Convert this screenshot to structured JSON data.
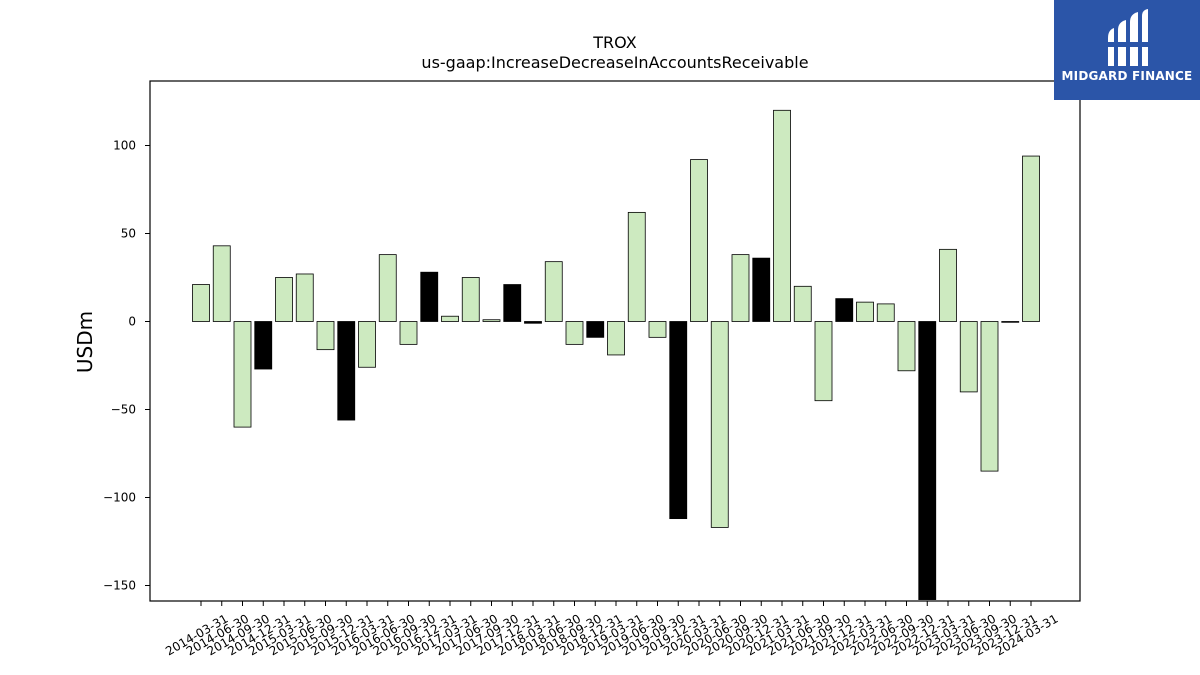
{
  "chart_data": {
    "type": "bar",
    "title": "TROX",
    "subtitle": "us-gaap:IncreaseDecreaseInAccountsReceivable",
    "ylabel": "USDm",
    "xlabel": "",
    "ylim": [
      -158,
      136
    ],
    "yticks": [
      -150,
      -100,
      -50,
      0,
      50,
      100
    ],
    "categories": [
      "2014-03-31",
      "2014-06-30",
      "2014-09-30",
      "2014-12-31",
      "2015-03-31",
      "2015-06-30",
      "2015-09-30",
      "2015-12-31",
      "2016-03-31",
      "2016-06-30",
      "2016-09-30",
      "2016-12-31",
      "2017-03-31",
      "2017-06-30",
      "2017-09-30",
      "2017-12-31",
      "2018-03-31",
      "2018-06-30",
      "2018-09-30",
      "2018-12-31",
      "2019-03-31",
      "2019-06-30",
      "2019-09-30",
      "2019-12-31",
      "2020-03-31",
      "2020-06-30",
      "2020-09-30",
      "2020-12-31",
      "2021-03-31",
      "2021-06-30",
      "2021-09-30",
      "2021-12-31",
      "2022-03-31",
      "2022-06-30",
      "2022-09-30",
      "2022-12-31",
      "2023-03-31",
      "2023-06-30",
      "2023-09-30",
      "2023-12-31",
      "2024-03-31"
    ],
    "values": [
      21,
      43,
      -60,
      -27,
      25,
      27,
      -16,
      -56,
      -26,
      38,
      -13,
      28,
      3,
      25,
      1,
      21,
      -1,
      34,
      -13,
      -9,
      -19,
      62,
      -9,
      -112,
      92,
      -117,
      38,
      36,
      120,
      20,
      -45,
      13,
      11,
      10,
      -28,
      -158,
      41,
      -40,
      -85,
      0,
      94
    ],
    "highlight": [
      false,
      false,
      false,
      true,
      false,
      false,
      false,
      true,
      false,
      false,
      false,
      true,
      false,
      false,
      false,
      true,
      true,
      false,
      false,
      true,
      false,
      false,
      false,
      true,
      false,
      false,
      false,
      true,
      false,
      false,
      false,
      true,
      false,
      false,
      false,
      true,
      false,
      false,
      false,
      true,
      false
    ],
    "colors": {
      "normal": "#cdeac0",
      "highlight": "#000000",
      "edge": "#000000"
    },
    "grid": false
  },
  "logo": {
    "text": "MIDGARD FINANCE",
    "color": "#2b55a8"
  }
}
